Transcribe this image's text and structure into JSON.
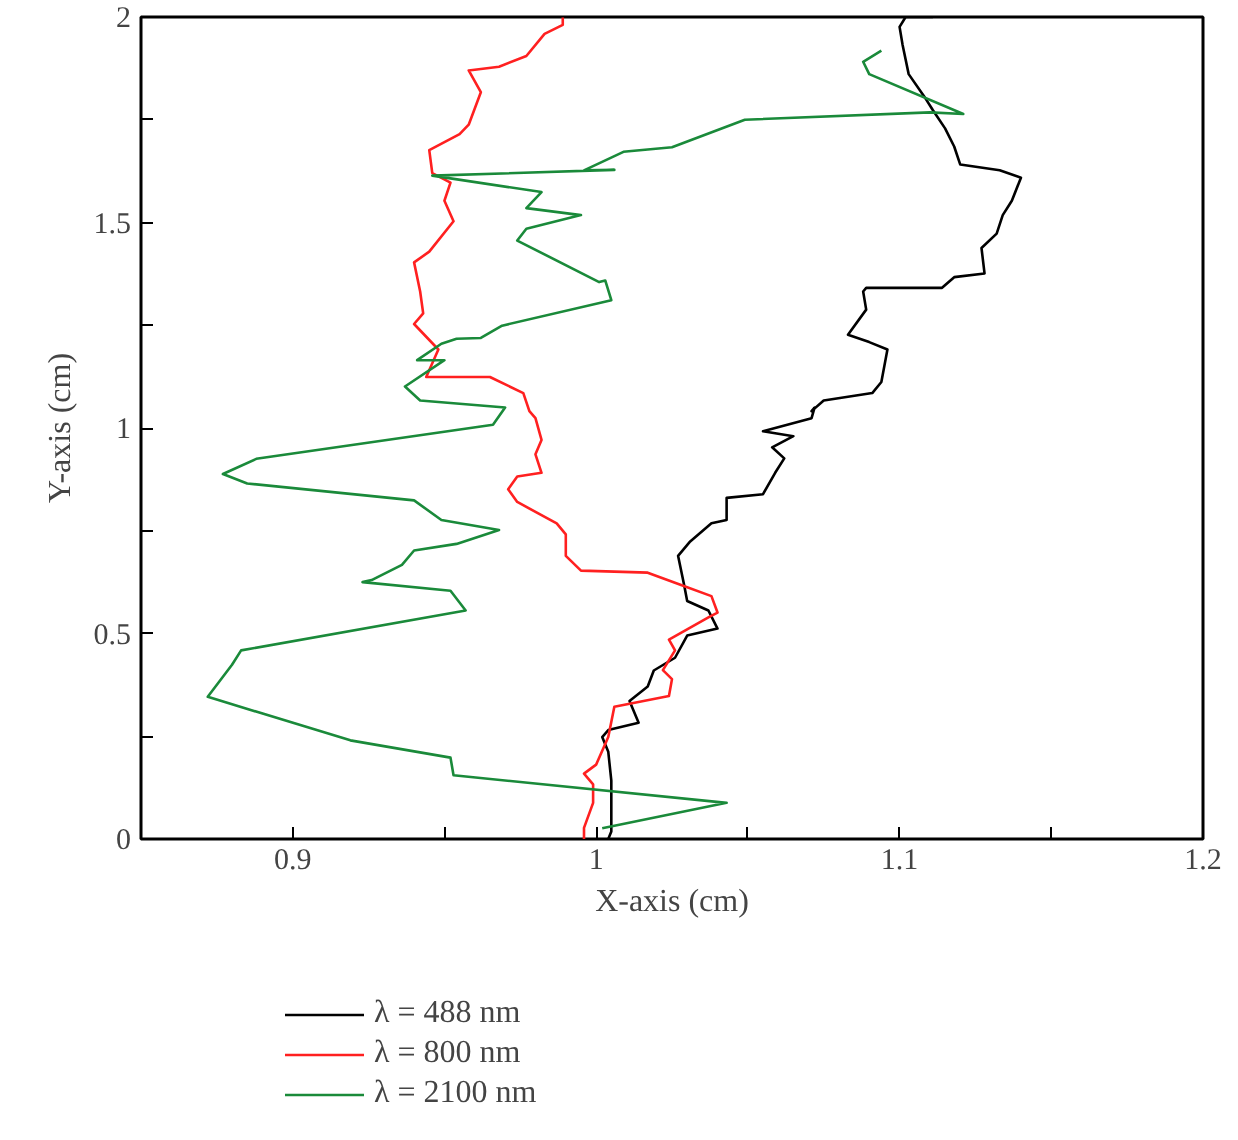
{
  "chart_data": {
    "type": "line",
    "xlabel": "X-axis (cm)",
    "ylabel": "Y-axis (cm)",
    "xlim": [
      0.85,
      1.2
    ],
    "ylim": [
      0,
      2
    ],
    "xticks": [
      {
        "value": 0.9,
        "label": "0.9"
      },
      {
        "value": 0.95,
        "label": null
      },
      1,
      {
        "value": 1.05,
        "label": null
      },
      {
        "value": 1.1,
        "label": "1.1"
      },
      {
        "value": 1.15,
        "label": null
      },
      {
        "value": 1.2,
        "label": "1.2"
      }
    ],
    "yticks": [
      0,
      {
        "value": 0.25,
        "label": null
      },
      {
        "value": 0.5,
        "label": "0.5"
      },
      {
        "value": 0.75,
        "label": null
      },
      1,
      {
        "value": 1.25,
        "label": null
      },
      {
        "value": 1.5,
        "label": "1.5"
      },
      {
        "value": 1.75,
        "label": null
      },
      2
    ],
    "grid": false,
    "legend": "bottom",
    "marker": "none",
    "line_style": "solid",
    "series": [
      {
        "name": "λ = 488 nm",
        "color": "#000000",
        "x": [
          1.004,
          1.005,
          1.005,
          1.004,
          1.002,
          1.004,
          1.014,
          1.011,
          1.017,
          1.019,
          1.026,
          1.03,
          1.04,
          1.037,
          1.03,
          1.029,
          1.027,
          1.031,
          1.038,
          1.043,
          1.043,
          1.055,
          1.059,
          1.062,
          1.058,
          1.065,
          1.055,
          1.071,
          1.072,
          1.071,
          1.075,
          1.091,
          1.094,
          1.096,
          1.09,
          1.083,
          1.089,
          1.088,
          1.089,
          1.114,
          1.118,
          1.128,
          1.127,
          1.132,
          1.134,
          1.137,
          1.14,
          1.133,
          1.12,
          1.118,
          1.115,
          1.111,
          1.108,
          1.103,
          1.101,
          1.1,
          1.102,
          1.111
        ],
        "values": [
          0.0,
          0.018,
          0.142,
          0.212,
          0.248,
          0.265,
          0.283,
          0.336,
          0.371,
          0.41,
          0.441,
          0.495,
          0.512,
          0.556,
          0.579,
          0.618,
          0.689,
          0.724,
          0.768,
          0.776,
          0.83,
          0.839,
          0.891,
          0.926,
          0.953,
          0.98,
          0.992,
          1.024,
          1.05,
          1.041,
          1.067,
          1.085,
          1.112,
          1.191,
          1.209,
          1.227,
          1.288,
          1.332,
          1.341,
          1.341,
          1.367,
          1.376,
          1.438,
          1.473,
          1.518,
          1.553,
          1.609,
          1.627,
          1.641,
          1.685,
          1.729,
          1.773,
          1.808,
          1.861,
          1.932,
          1.976,
          2.0,
          2.0
        ]
      },
      {
        "name": "λ = 800 nm",
        "color": "#ff2020",
        "x": [
          0.996,
          0.996,
          0.999,
          0.999,
          0.996,
          1.0,
          1.004,
          1.006,
          1.024,
          1.025,
          1.022,
          1.026,
          1.024,
          1.037,
          1.04,
          1.038,
          1.028,
          1.017,
          0.995,
          0.99,
          0.99,
          0.987,
          0.974,
          0.971,
          0.974,
          0.982,
          0.98,
          0.982,
          0.98,
          0.978,
          0.976,
          0.965,
          0.944,
          0.948,
          0.94,
          0.943,
          0.942,
          0.94,
          0.945,
          0.953,
          0.95,
          0.952,
          0.946,
          0.945,
          0.955,
          0.958,
          0.962,
          0.958,
          0.968,
          0.977,
          0.983,
          0.989,
          0.989
        ],
        "values": [
          0.0,
          0.027,
          0.088,
          0.133,
          0.159,
          0.181,
          0.248,
          0.322,
          0.348,
          0.389,
          0.411,
          0.459,
          0.485,
          0.539,
          0.551,
          0.591,
          0.618,
          0.648,
          0.653,
          0.689,
          0.741,
          0.768,
          0.82,
          0.851,
          0.882,
          0.891,
          0.936,
          0.971,
          1.024,
          1.041,
          1.085,
          1.124,
          1.124,
          1.191,
          1.253,
          1.279,
          1.332,
          1.403,
          1.429,
          1.503,
          1.553,
          1.597,
          1.62,
          1.676,
          1.715,
          1.738,
          1.817,
          1.87,
          1.879,
          1.905,
          1.959,
          1.981,
          1.999
        ]
      },
      {
        "name": "λ = 2100 nm",
        "color": "#1a8a3a",
        "x": [
          1.002,
          1.043,
          0.953,
          0.952,
          0.919,
          0.872,
          0.88,
          0.883,
          0.957,
          0.952,
          0.923,
          0.926,
          0.936,
          0.94,
          0.954,
          0.968,
          0.949,
          0.94,
          0.885,
          0.877,
          0.888,
          0.966,
          0.97,
          0.942,
          0.937,
          0.95,
          0.941,
          0.949,
          0.954,
          0.962,
          0.969,
          1.005,
          1.003,
          1.001,
          0.974,
          0.977,
          0.995,
          0.977,
          0.982,
          0.946,
          1.006,
          0.996,
          1.009,
          1.025,
          1.049,
          1.11,
          1.121,
          1.09,
          1.088,
          1.094
        ],
        "values": [
          0.026,
          0.088,
          0.155,
          0.198,
          0.24,
          0.346,
          0.424,
          0.459,
          0.556,
          0.604,
          0.625,
          0.63,
          0.667,
          0.702,
          0.718,
          0.752,
          0.776,
          0.824,
          0.865,
          0.888,
          0.925,
          1.008,
          1.05,
          1.067,
          1.101,
          1.165,
          1.165,
          1.205,
          1.217,
          1.219,
          1.249,
          1.311,
          1.359,
          1.355,
          1.456,
          1.485,
          1.518,
          1.535,
          1.574,
          1.614,
          1.628,
          1.627,
          1.672,
          1.683,
          1.75,
          1.768,
          1.764,
          1.861,
          1.891,
          1.918
        ]
      }
    ]
  }
}
